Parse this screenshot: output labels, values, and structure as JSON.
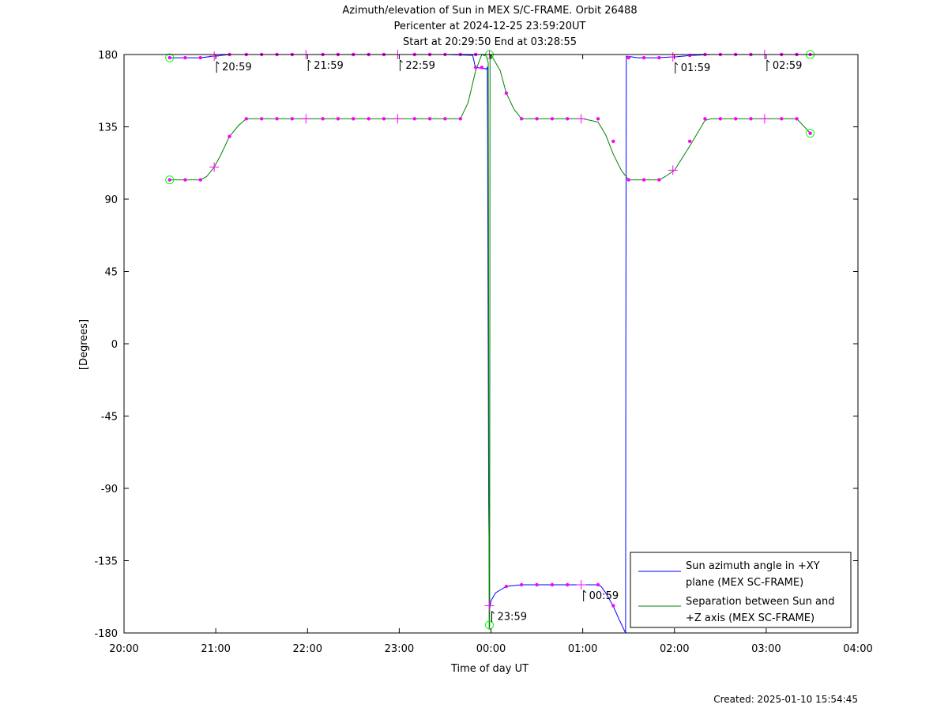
{
  "chart_data": {
    "type": "line",
    "title_lines": [
      "Azimuth/elevation of Sun in MEX S/C-FRAME.  Orbit 26488",
      "Pericenter at 2024-12-25 23:59:20UT",
      "Start at 20:29:50 End at 03:28:55"
    ],
    "xlabel": "Time of day UT",
    "ylabel": "[Degrees]",
    "xlim": [
      20.0,
      28.0
    ],
    "ylim": [
      -180,
      180
    ],
    "x_ticks": [
      20,
      21,
      22,
      23,
      24,
      25,
      26,
      27,
      28
    ],
    "x_tick_labels": [
      "20:00",
      "21:00",
      "22:00",
      "23:00",
      "00:00",
      "01:00",
      "02:00",
      "03:00",
      "04:00"
    ],
    "y_ticks": [
      180,
      135,
      90,
      45,
      0,
      -45,
      -90,
      -135,
      -180
    ],
    "y_tick_labels": [
      "180",
      "135",
      "90",
      "45",
      "0",
      "-45",
      "-90",
      "-135",
      "-180"
    ],
    "legend_position": "bottom-right",
    "series": [
      {
        "name_lines": [
          "Sun azimuth angle in +XY",
          "plane (MEX SC-FRAME)"
        ],
        "color": "#0000ff",
        "segments": [
          [
            [
              20.497,
              178
            ],
            [
              20.667,
              178
            ],
            [
              20.833,
              178
            ],
            [
              20.983,
              179
            ],
            [
              21.15,
              180
            ],
            [
              21.5,
              180
            ],
            [
              22.0,
              180
            ],
            [
              22.5,
              180
            ],
            [
              23.0,
              180
            ],
            [
              23.5,
              180
            ],
            [
              23.8,
              179.5
            ],
            [
              23.83,
              172
            ],
            [
              23.95,
              171
            ],
            [
              23.96,
              172
            ],
            [
              23.965,
              100
            ],
            [
              23.975,
              -100
            ],
            [
              23.985,
              -165
            ],
            [
              24.0,
              -160
            ],
            [
              24.05,
              -155
            ],
            [
              24.167,
              -151
            ],
            [
              24.333,
              -150
            ],
            [
              24.5,
              -150
            ],
            [
              24.667,
              -150
            ],
            [
              25.0,
              -150
            ],
            [
              25.167,
              -150
            ],
            [
              25.2,
              -151
            ],
            [
              25.25,
              -155
            ],
            [
              25.33,
              -163
            ],
            [
              25.4,
              -172
            ],
            [
              25.45,
              -178
            ],
            [
              25.467,
              -180
            ]
          ],
          [
            [
              25.467,
              -180
            ],
            [
              25.47,
              0
            ],
            [
              25.475,
              179
            ]
          ],
          [
            [
              25.475,
              179
            ],
            [
              25.6,
              178
            ],
            [
              25.8,
              178
            ],
            [
              26.0,
              178.5
            ],
            [
              26.2,
              179.5
            ],
            [
              26.4,
              180
            ],
            [
              27.0,
              180
            ],
            [
              27.47,
              180
            ]
          ]
        ]
      },
      {
        "name_lines": [
          "Separation between Sun and",
          "+Z axis (MEX SC-FRAME)"
        ],
        "color": "#008000",
        "segments": [
          [
            [
              20.497,
              102
            ],
            [
              20.667,
              102
            ],
            [
              20.833,
              102
            ],
            [
              20.9,
              104
            ],
            [
              20.983,
              110
            ],
            [
              21.05,
              117
            ],
            [
              21.15,
              129
            ],
            [
              21.25,
              136
            ],
            [
              21.333,
              140
            ],
            [
              21.5,
              140
            ],
            [
              22.0,
              140
            ],
            [
              22.5,
              140
            ],
            [
              23.0,
              140
            ],
            [
              23.5,
              140
            ],
            [
              23.667,
              140
            ],
            [
              23.75,
              150
            ],
            [
              23.833,
              170
            ],
            [
              23.9,
              180
            ],
            [
              23.95,
              179
            ],
            [
              23.97,
              175
            ],
            [
              23.98,
              -178
            ],
            [
              23.985,
              -175
            ],
            [
              23.99,
              179
            ],
            [
              24.0,
              180
            ],
            [
              24.1,
              170
            ],
            [
              24.167,
              156
            ],
            [
              24.25,
              146
            ],
            [
              24.333,
              140
            ],
            [
              24.5,
              140
            ],
            [
              24.667,
              140
            ],
            [
              24.833,
              140
            ],
            [
              25.0,
              140
            ],
            [
              25.167,
              138
            ],
            [
              25.25,
              130
            ],
            [
              25.333,
              118
            ],
            [
              25.42,
              108
            ],
            [
              25.5,
              102
            ],
            [
              25.667,
              102
            ],
            [
              25.833,
              102
            ],
            [
              25.9,
              104
            ],
            [
              26.0,
              108
            ],
            [
              26.167,
              123
            ],
            [
              26.333,
              139
            ],
            [
              26.4,
              140
            ],
            [
              26.5,
              140
            ],
            [
              27.0,
              140
            ],
            [
              27.333,
              140
            ],
            [
              27.4,
              136
            ],
            [
              27.48,
              131
            ]
          ]
        ]
      }
    ],
    "dot_markers": [
      [
        20.497,
        178
      ],
      [
        20.667,
        178
      ],
      [
        20.833,
        178
      ],
      [
        21.15,
        180
      ],
      [
        21.333,
        180
      ],
      [
        21.5,
        180
      ],
      [
        21.667,
        180
      ],
      [
        21.833,
        180
      ],
      [
        22.167,
        180
      ],
      [
        22.333,
        180
      ],
      [
        22.5,
        180
      ],
      [
        22.667,
        180
      ],
      [
        22.833,
        180
      ],
      [
        23.167,
        180
      ],
      [
        23.333,
        180
      ],
      [
        23.5,
        180
      ],
      [
        23.667,
        180
      ],
      [
        23.833,
        172
      ],
      [
        23.9,
        172
      ],
      [
        25.5,
        178
      ],
      [
        25.667,
        178
      ],
      [
        25.833,
        178
      ],
      [
        26.167,
        179.5
      ],
      [
        26.333,
        180
      ],
      [
        26.5,
        180
      ],
      [
        26.667,
        180
      ],
      [
        26.833,
        180
      ],
      [
        27.167,
        180
      ],
      [
        27.333,
        180
      ],
      [
        27.48,
        180
      ],
      [
        24.167,
        -151
      ],
      [
        24.333,
        -150
      ],
      [
        24.5,
        -150
      ],
      [
        24.667,
        -150
      ],
      [
        24.833,
        -150
      ],
      [
        25.167,
        -150
      ],
      [
        25.333,
        -163
      ],
      [
        20.497,
        102
      ],
      [
        20.667,
        102
      ],
      [
        20.833,
        102
      ],
      [
        21.15,
        129
      ],
      [
        21.333,
        140
      ],
      [
        21.5,
        140
      ],
      [
        21.667,
        140
      ],
      [
        21.833,
        140
      ],
      [
        22.167,
        140
      ],
      [
        22.333,
        140
      ],
      [
        22.5,
        140
      ],
      [
        22.667,
        140
      ],
      [
        22.833,
        140
      ],
      [
        23.167,
        140
      ],
      [
        23.333,
        140
      ],
      [
        23.5,
        140
      ],
      [
        23.667,
        140
      ],
      [
        23.833,
        180
      ],
      [
        24.167,
        156
      ],
      [
        24.333,
        140
      ],
      [
        24.5,
        140
      ],
      [
        24.667,
        140
      ],
      [
        24.833,
        140
      ],
      [
        25.167,
        140
      ],
      [
        25.333,
        126
      ],
      [
        25.5,
        102
      ],
      [
        25.667,
        102
      ],
      [
        25.833,
        102
      ],
      [
        26.167,
        126
      ],
      [
        26.333,
        140
      ],
      [
        26.5,
        140
      ],
      [
        26.667,
        140
      ],
      [
        26.833,
        140
      ],
      [
        27.167,
        140
      ],
      [
        27.333,
        140
      ],
      [
        27.48,
        131
      ]
    ],
    "cross_markers": [
      [
        20.983,
        179
      ],
      [
        21.983,
        180
      ],
      [
        22.983,
        180
      ],
      [
        23.983,
        -163
      ],
      [
        24.983,
        -150
      ],
      [
        25.983,
        178.5
      ],
      [
        26.983,
        180
      ],
      [
        20.983,
        110
      ],
      [
        21.983,
        140
      ],
      [
        22.983,
        140
      ],
      [
        23.983,
        180
      ],
      [
        24.983,
        140
      ],
      [
        25.983,
        108
      ],
      [
        26.983,
        140
      ]
    ],
    "circle_markers": [
      [
        20.497,
        178
      ],
      [
        20.497,
        102
      ],
      [
        23.983,
        180
      ],
      [
        23.983,
        -175
      ],
      [
        27.48,
        180
      ],
      [
        27.48,
        131
      ]
    ],
    "time_annotations": [
      {
        "x": 20.983,
        "y": 179,
        "label": "20:59"
      },
      {
        "x": 21.983,
        "y": 180,
        "label": "21:59"
      },
      {
        "x": 22.983,
        "y": 180,
        "label": "22:59"
      },
      {
        "x": 23.983,
        "y": -163,
        "label": "23:59"
      },
      {
        "x": 24.983,
        "y": -150,
        "label": "00:59"
      },
      {
        "x": 25.983,
        "y": 178.5,
        "label": "01:59"
      },
      {
        "x": 26.983,
        "y": 180,
        "label": "02:59"
      }
    ],
    "marker_colors": {
      "dot": "#ff00ff",
      "cross": "#ff00ff",
      "circle": "#00ff00",
      "annotation": "#000000"
    }
  },
  "footer": {
    "created": "Created: 2025-01-10 15:54:45"
  }
}
